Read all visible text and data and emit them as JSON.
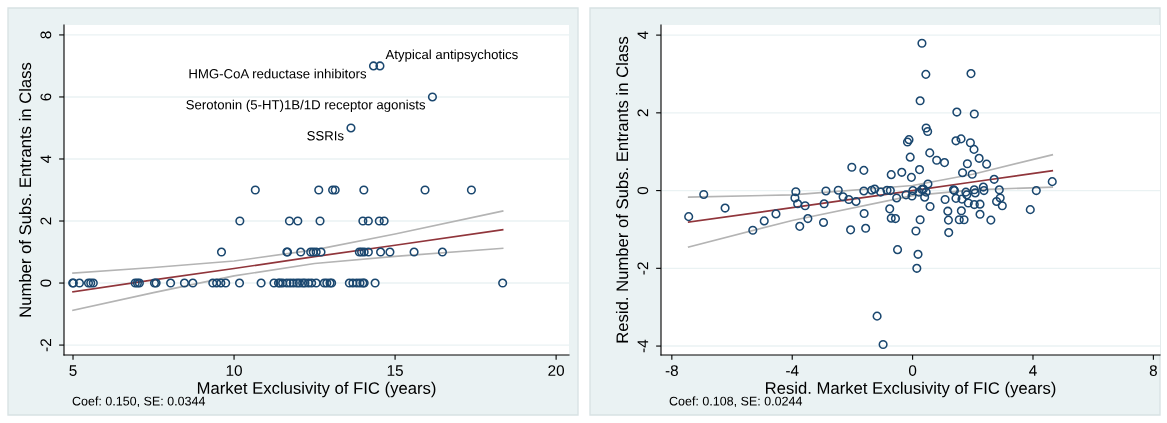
{
  "chart_data": [
    {
      "type": "scatter",
      "xlabel": "Market Exclusivity of FIC (years)",
      "ylabel": "Number of Subs. Entrants in Class",
      "xlim": [
        4.72,
        20.4
      ],
      "ylim": [
        -2.32,
        8.32
      ],
      "xticks": [
        5,
        10,
        15,
        20
      ],
      "yticks": [
        -2,
        0,
        2,
        4,
        6,
        8
      ],
      "grid": "y",
      "marker": "circle",
      "legend": false,
      "annotations": [
        "Coef: 0.150, SE: 0.0344",
        {
          "text": "Atypical antipsychotics",
          "x": 14.53,
          "y": 7
        },
        {
          "text": "HMG-CoA reductase inhibitors",
          "x": 14.33,
          "y": 7
        },
        {
          "text": "Serotonin (5-HT)1B/1D receptor agonists",
          "x": 16.16,
          "y": 6
        },
        {
          "text": "SSRIs",
          "x": 13.63,
          "y": 5
        }
      ],
      "series": [
        {
          "color": "#1a476f",
          "x": [
            4.99,
            5.01,
            5.2,
            5.48,
            5.55,
            5.63,
            6.93,
            7.0,
            7.06,
            7.53,
            7.58,
            8.03,
            8.46,
            8.72,
            9.34,
            9.46,
            9.59,
            9.74,
            10.17,
            10.84,
            11.24,
            11.38,
            11.43,
            11.51,
            11.64,
            11.74,
            11.84,
            11.95,
            12.03,
            12.13,
            12.2,
            12.31,
            12.41,
            12.55,
            12.8,
            12.88,
            12.98,
            13.03,
            13.58,
            13.69,
            13.81,
            13.91,
            14.0,
            14.04,
            14.38,
            18.34,
            9.61,
            11.64,
            11.66,
            12.07,
            12.38,
            12.46,
            12.55,
            12.7,
            13.89,
            13.96,
            14.04,
            14.17,
            14.55,
            14.84,
            15.59,
            16.47,
            10.18,
            11.72,
            11.98,
            12.67,
            14.0,
            14.17,
            14.51,
            14.66,
            10.66,
            12.63,
            13.06,
            13.14,
            14.03,
            15.93,
            17.37,
            13.63,
            16.16,
            14.33,
            14.53
          ],
          "values": [
            0,
            0,
            0,
            0,
            0,
            0,
            0,
            0,
            0,
            0,
            0,
            0,
            0,
            0,
            0,
            0,
            0,
            0,
            0,
            0,
            0,
            0,
            0,
            0,
            0,
            0,
            0,
            0,
            0,
            0,
            0,
            0,
            0,
            0,
            0,
            0,
            0,
            0,
            0,
            0,
            0,
            0,
            0,
            0,
            0,
            0,
            1,
            1,
            1,
            1,
            1,
            1,
            1,
            1,
            1,
            1,
            1,
            1,
            1,
            1,
            1,
            1,
            2,
            2,
            2,
            2,
            2,
            2,
            2,
            2,
            3,
            3,
            3,
            3,
            3,
            3,
            3,
            5,
            6,
            7,
            7
          ]
        },
        {
          "type": "line",
          "marker": "none",
          "color": "#b4b4b4",
          "x": [
            5,
            7.5,
            10,
            12.5,
            15,
            18.34
          ],
          "values": [
            -0.88,
            -0.31,
            0.23,
            0.63,
            0.86,
            1.12
          ]
        },
        {
          "type": "line",
          "marker": "none",
          "color": "#b4b4b4",
          "x": [
            5,
            7.5,
            10,
            12.5,
            15,
            18.34
          ],
          "values": [
            0.32,
            0.5,
            0.71,
            1.07,
            1.58,
            2.32
          ]
        },
        {
          "type": "line",
          "marker": "none",
          "color": "#90353b",
          "x": [
            5,
            7.5,
            10,
            12.5,
            15,
            18.34
          ],
          "values": [
            -0.28,
            0.1,
            0.47,
            0.85,
            1.22,
            1.72
          ]
        }
      ]
    },
    {
      "type": "scatter",
      "xlabel": "Resid. Market Exclusivity of FIC (years)",
      "ylabel": "Resid. Number of Subs. Entrants in Class",
      "xlim": [
        -8.36,
        8.22
      ],
      "ylim": [
        -4.23,
        4.26
      ],
      "xticks": [
        -8,
        -4,
        0,
        4,
        8
      ],
      "yticks": [
        -4,
        -2,
        0,
        2,
        4
      ],
      "grid": "y",
      "marker": "circle",
      "legend": false,
      "annotations": [
        "Coef: 0.108, SE: 0.0244"
      ],
      "series": [
        {
          "color": "#1a476f",
          "x": [
            -7.44,
            -6.94,
            -6.23,
            -5.31,
            -4.93,
            -4.54,
            -3.88,
            -3.91,
            -3.82,
            -3.75,
            -3.57,
            -3.48,
            -2.96,
            -2.94,
            -2.88,
            -2.47,
            -2.31,
            -2.12,
            -2.06,
            -2.02,
            -1.88,
            -1.62,
            -1.62,
            -1.61,
            -1.56,
            -1.36,
            -1.26,
            -1.18,
            -1.06,
            -0.98,
            -0.85,
            -0.76,
            -0.74,
            -0.71,
            -0.71,
            -0.57,
            -0.53,
            -0.5,
            -0.36,
            -0.22,
            -0.17,
            -0.12,
            -0.08,
            -0.04,
            -0.02,
            0.01,
            0.11,
            0.14,
            0.18,
            0.21,
            0.23,
            0.25,
            0.25,
            0.31,
            0.31,
            0.36,
            0.4,
            0.44,
            0.45,
            0.45,
            0.5,
            0.51,
            0.57,
            0.58,
            0.8,
            1.06,
            1.08,
            1.17,
            1.19,
            1.2,
            1.36,
            1.39,
            1.44,
            1.44,
            1.47,
            1.55,
            1.61,
            1.62,
            1.64,
            1.66,
            1.71,
            1.77,
            1.8,
            1.82,
            1.85,
            1.92,
            1.94,
            1.98,
            2.04,
            2.05,
            2.05,
            2.05,
            2.08,
            2.21,
            2.24,
            2.24,
            2.35,
            2.37,
            2.46,
            2.6,
            2.71,
            2.79,
            2.88,
            2.91,
            2.98,
            3.91,
            4.11,
            4.64
          ],
          "values": [
            -0.67,
            -0.1,
            -0.45,
            -1.02,
            -0.78,
            -0.6,
            -0.03,
            -0.19,
            -0.34,
            -0.92,
            -0.39,
            -0.72,
            -0.82,
            -0.34,
            -0.01,
            0.01,
            -0.16,
            -0.23,
            -1.01,
            0.6,
            -0.28,
            0.52,
            -0.01,
            -0.59,
            -0.97,
            0.01,
            0.04,
            -3.23,
            -0.04,
            -3.96,
            0.01,
            -0.47,
            0,
            -0.71,
            0.41,
            -0.72,
            -0.19,
            -1.52,
            0.47,
            -0.11,
            1.25,
            1.31,
            0.86,
            0.34,
            -0.14,
            0,
            -1.04,
            -2.0,
            -1.64,
            -0.04,
            0.54,
            2.31,
            -0.75,
            3.79,
            0.03,
            0.04,
            -0.17,
            2.99,
            -0.04,
            1.61,
            1.52,
            0.17,
            0.97,
            -0.41,
            0.78,
            0.72,
            -0.23,
            -0.53,
            -0.76,
            -1.08,
            0.02,
            0,
            1.28,
            -0.2,
            2.02,
            -0.75,
            1.33,
            -0.52,
            -0.22,
            0.46,
            -0.75,
            -0.04,
            -0.11,
            0.69,
            -0.32,
            1.23,
            3.01,
            0.42,
            1.06,
            1.97,
            -0.36,
            0.02,
            -0.06,
            0.83,
            -0.35,
            -0.61,
            0.09,
            0,
            0.68,
            -0.76,
            0.29,
            -0.28,
            0.02,
            -0.19,
            -0.39,
            -0.49,
            0,
            0.23
          ]
        },
        {
          "type": "line",
          "marker": "none",
          "color": "#b4b4b4",
          "x": [
            -7.44,
            -4,
            0,
            2,
            4.64
          ],
          "values": [
            -1.45,
            -0.77,
            -0.13,
            0.02,
            0.09
          ]
        },
        {
          "type": "line",
          "marker": "none",
          "color": "#b4b4b4",
          "x": [
            -7.44,
            -4,
            0,
            2,
            4.64
          ],
          "values": [
            -0.17,
            -0.11,
            0.13,
            0.42,
            0.92
          ]
        },
        {
          "type": "line",
          "marker": "none",
          "color": "#90353b",
          "x": [
            -7.44,
            -4,
            0,
            2,
            4.64
          ],
          "values": [
            -0.81,
            -0.44,
            0,
            0.22,
            0.51
          ]
        }
      ]
    }
  ]
}
